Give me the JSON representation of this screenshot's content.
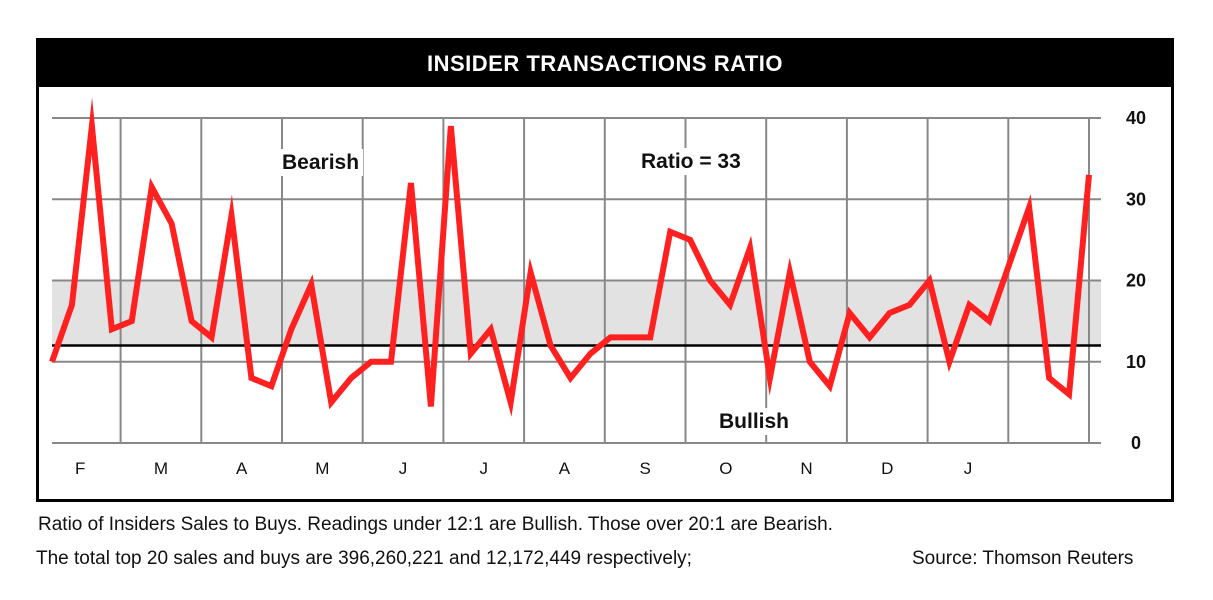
{
  "colors": {
    "line": "#ff2020",
    "band": "#e2e2e2",
    "grid": "#888888",
    "frame": "#000000"
  },
  "chart_data": {
    "type": "line",
    "title": "INSIDER TRANSACTIONS RATIO",
    "months": [
      "F",
      "M",
      "A",
      "M",
      "J",
      "J",
      "A",
      "S",
      "O",
      "N",
      "D",
      "J"
    ],
    "y_ticks": [
      0,
      10,
      20,
      30,
      40
    ],
    "ylim": [
      0,
      40
    ],
    "x_range": [
      0,
      52
    ],
    "bearish_band": [
      12,
      20
    ],
    "reference_line": 12,
    "series": [
      {
        "name": "Ratio of Insiders Sales to Buys",
        "values": [
          10,
          17,
          39,
          14,
          15,
          31.5,
          27,
          15,
          13,
          28,
          8,
          7,
          14,
          19.5,
          5,
          8,
          10,
          10,
          32,
          4.5,
          39,
          11,
          14,
          5,
          21,
          12,
          8,
          11,
          13,
          13,
          13,
          26,
          25,
          20,
          17,
          24,
          8,
          21,
          10,
          7,
          16,
          13,
          16,
          17,
          20,
          10,
          17,
          15,
          22,
          29,
          8,
          6,
          33
        ]
      }
    ],
    "annotations": {
      "bearish": "Bearish",
      "bullish": "Bullish",
      "ratio": "Ratio = 33"
    }
  },
  "caption": {
    "line1": "Ratio of Insiders Sales to Buys. Readings under 12:1 are Bullish. Those over 20:1 are Bearish.",
    "line2": "The total top 20 sales and buys are 396,260,221 and 12,172,449 respectively;",
    "source": "Source: Thomson Reuters"
  }
}
